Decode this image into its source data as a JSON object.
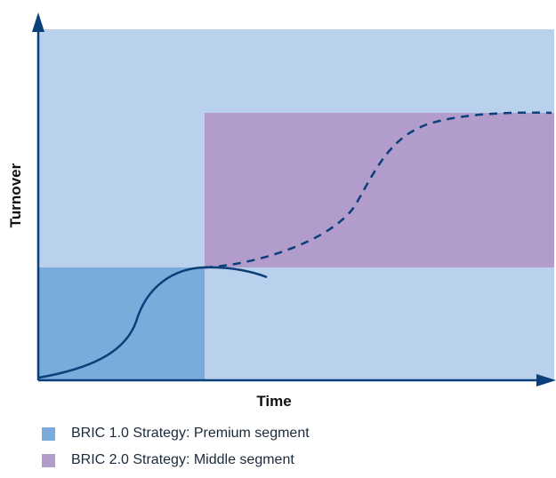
{
  "axes": {
    "x_label": "Time",
    "y_label": "Turnover"
  },
  "colors": {
    "background_region": "#b9d1ec",
    "premium_segment": "#7aacdb",
    "middle_segment": "#b29ccc",
    "curve": "#0a3f7a",
    "axis": "#0a3f7a"
  },
  "legend": {
    "items": [
      {
        "label": "BRIC 1.0 Strategy: Premium segment",
        "color": "#7aacdb"
      },
      {
        "label": "BRIC 2.0 Strategy: Middle segment",
        "color": "#b29ccc"
      }
    ]
  }
}
